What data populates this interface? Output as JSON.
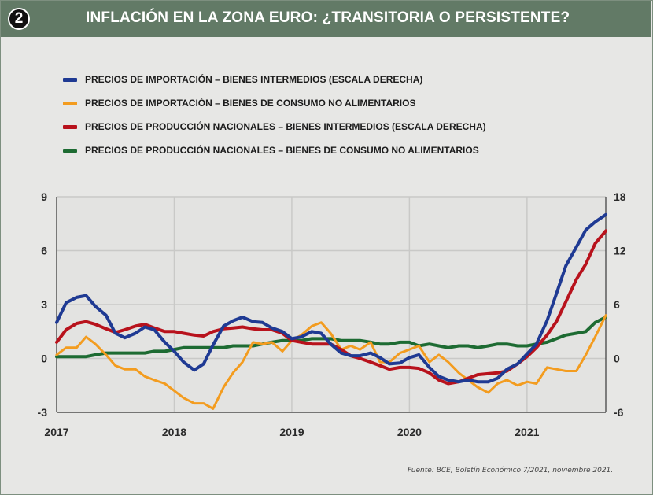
{
  "header": {
    "badge": "2",
    "title": "INFLACIÓN EN LA ZONA EURO: ¿TRANSITORIA O PERSISTENTE?"
  },
  "source": "Fuente: BCE, Boletín Económico 7/2021, noviembre 2021.",
  "chart_data": {
    "type": "line",
    "grid": true,
    "legend_position": "top-left",
    "x_ticks": [
      "2017",
      "2018",
      "2019",
      "2020",
      "2021"
    ],
    "x_range": [
      2017.0,
      2021.67
    ],
    "y_left": {
      "ticks": [
        "9",
        "6",
        "3",
        "0",
        "-3"
      ],
      "range": [
        -3,
        9
      ]
    },
    "y_right": {
      "ticks": [
        "18",
        "12",
        "6",
        "0",
        "-6"
      ],
      "range": [
        -6,
        18
      ]
    },
    "series": [
      {
        "name": "PRECIOS DE IMPORTACIÓN – BIENES INTERMEDIOS (ESCALA DERECHA)",
        "color": "#1f3a93",
        "axis": "right",
        "x": [
          2017.0,
          2017.08,
          2017.17,
          2017.25,
          2017.33,
          2017.42,
          2017.5,
          2017.58,
          2017.67,
          2017.75,
          2017.83,
          2017.92,
          2018.0,
          2018.08,
          2018.17,
          2018.25,
          2018.33,
          2018.42,
          2018.5,
          2018.58,
          2018.67,
          2018.75,
          2018.83,
          2018.92,
          2019.0,
          2019.08,
          2019.17,
          2019.25,
          2019.33,
          2019.42,
          2019.5,
          2019.58,
          2019.67,
          2019.75,
          2019.83,
          2019.92,
          2020.0,
          2020.08,
          2020.17,
          2020.25,
          2020.33,
          2020.42,
          2020.5,
          2020.58,
          2020.67,
          2020.75,
          2020.83,
          2020.92,
          2021.0,
          2021.08,
          2021.17,
          2021.25,
          2021.33,
          2021.42,
          2021.5,
          2021.58,
          2021.67
        ],
        "values": [
          4.0,
          6.2,
          6.8,
          7.0,
          5.8,
          4.8,
          2.8,
          2.3,
          2.8,
          3.5,
          3.2,
          1.8,
          0.8,
          -0.4,
          -1.3,
          -0.6,
          1.5,
          3.6,
          4.2,
          4.6,
          4.1,
          4.0,
          3.4,
          3.0,
          2.2,
          2.4,
          3.0,
          2.8,
          1.6,
          0.6,
          0.3,
          0.3,
          0.6,
          0.1,
          -0.6,
          -0.5,
          0.1,
          0.4,
          -1.0,
          -2.0,
          -2.4,
          -2.6,
          -2.4,
          -2.6,
          -2.6,
          -2.2,
          -1.2,
          -0.6,
          0.5,
          1.6,
          4.2,
          7.2,
          10.3,
          12.4,
          14.3,
          15.2,
          16.0
        ]
      },
      {
        "name": "PRECIOS DE IMPORTACIÓN – BIENES DE CONSUMO NO ALIMENTARIOS",
        "color": "#f39c1f",
        "axis": "left",
        "x": [
          2017.0,
          2017.08,
          2017.17,
          2017.25,
          2017.33,
          2017.42,
          2017.5,
          2017.58,
          2017.67,
          2017.75,
          2017.83,
          2017.92,
          2018.0,
          2018.08,
          2018.17,
          2018.25,
          2018.33,
          2018.42,
          2018.5,
          2018.58,
          2018.67,
          2018.75,
          2018.83,
          2018.92,
          2019.0,
          2019.08,
          2019.17,
          2019.25,
          2019.33,
          2019.42,
          2019.5,
          2019.58,
          2019.67,
          2019.75,
          2019.83,
          2019.92,
          2020.0,
          2020.08,
          2020.17,
          2020.25,
          2020.33,
          2020.42,
          2020.5,
          2020.58,
          2020.67,
          2020.75,
          2020.83,
          2020.92,
          2021.0,
          2021.08,
          2021.17,
          2021.25,
          2021.33,
          2021.42,
          2021.5,
          2021.58,
          2021.67
        ],
        "values": [
          0.2,
          0.6,
          0.6,
          1.2,
          0.8,
          0.2,
          -0.4,
          -0.6,
          -0.6,
          -1.0,
          -1.2,
          -1.4,
          -1.8,
          -2.2,
          -2.5,
          -2.5,
          -2.8,
          -1.6,
          -0.8,
          -0.2,
          0.9,
          0.8,
          0.9,
          0.4,
          1.0,
          1.3,
          1.8,
          2.0,
          1.4,
          0.5,
          0.7,
          0.5,
          0.9,
          -0.2,
          -0.2,
          0.3,
          0.5,
          0.7,
          -0.2,
          0.2,
          -0.2,
          -0.8,
          -1.2,
          -1.6,
          -1.9,
          -1.4,
          -1.2,
          -1.5,
          -1.3,
          -1.4,
          -0.5,
          -0.6,
          -0.7,
          -0.7,
          0.2,
          1.2,
          2.4
        ]
      },
      {
        "name": "PRECIOS DE PRODUCCIÓN NACIONALES – BIENES INTERMEDIOS (ESCALA DERECHA)",
        "color": "#b8121c",
        "axis": "right",
        "x": [
          2017.0,
          2017.08,
          2017.17,
          2017.25,
          2017.33,
          2017.42,
          2017.5,
          2017.58,
          2017.67,
          2017.75,
          2017.83,
          2017.92,
          2018.0,
          2018.08,
          2018.17,
          2018.25,
          2018.33,
          2018.42,
          2018.5,
          2018.58,
          2018.67,
          2018.75,
          2018.83,
          2018.92,
          2019.0,
          2019.08,
          2019.17,
          2019.25,
          2019.33,
          2019.42,
          2019.5,
          2019.58,
          2019.67,
          2019.75,
          2019.83,
          2019.92,
          2020.0,
          2020.08,
          2020.17,
          2020.25,
          2020.33,
          2020.42,
          2020.5,
          2020.58,
          2020.67,
          2020.75,
          2020.83,
          2020.92,
          2021.0,
          2021.08,
          2021.17,
          2021.25,
          2021.33,
          2021.42,
          2021.5,
          2021.58,
          2021.67
        ],
        "values": [
          1.8,
          3.2,
          3.9,
          4.1,
          3.8,
          3.3,
          2.9,
          3.2,
          3.6,
          3.8,
          3.4,
          3.0,
          3.0,
          2.8,
          2.6,
          2.5,
          3.0,
          3.3,
          3.4,
          3.5,
          3.3,
          3.2,
          3.2,
          2.8,
          2.0,
          1.8,
          1.6,
          1.6,
          1.6,
          1.0,
          0.3,
          0.0,
          -0.4,
          -0.8,
          -1.2,
          -1.0,
          -1.0,
          -1.1,
          -1.6,
          -2.4,
          -2.8,
          -2.6,
          -2.2,
          -1.8,
          -1.7,
          -1.6,
          -1.4,
          -0.6,
          0.2,
          1.2,
          2.6,
          4.1,
          6.3,
          8.8,
          10.5,
          12.8,
          14.2
        ]
      },
      {
        "name": "PRECIOS DE PRODUCCIÓN NACIONALES – BIENES DE CONSUMO NO ALIMENTARIOS",
        "color": "#1d6b32",
        "axis": "left",
        "x": [
          2017.0,
          2017.08,
          2017.17,
          2017.25,
          2017.33,
          2017.42,
          2017.5,
          2017.58,
          2017.67,
          2017.75,
          2017.83,
          2017.92,
          2018.0,
          2018.08,
          2018.17,
          2018.25,
          2018.33,
          2018.42,
          2018.5,
          2018.58,
          2018.67,
          2018.75,
          2018.83,
          2018.92,
          2019.0,
          2019.08,
          2019.17,
          2019.25,
          2019.33,
          2019.42,
          2019.5,
          2019.58,
          2019.67,
          2019.75,
          2019.83,
          2019.92,
          2020.0,
          2020.08,
          2020.17,
          2020.25,
          2020.33,
          2020.42,
          2020.5,
          2020.58,
          2020.67,
          2020.75,
          2020.83,
          2020.92,
          2021.0,
          2021.08,
          2021.17,
          2021.25,
          2021.33,
          2021.42,
          2021.5,
          2021.58,
          2021.67
        ],
        "values": [
          0.1,
          0.1,
          0.1,
          0.1,
          0.2,
          0.3,
          0.3,
          0.3,
          0.3,
          0.3,
          0.4,
          0.4,
          0.5,
          0.6,
          0.6,
          0.6,
          0.6,
          0.6,
          0.7,
          0.7,
          0.7,
          0.8,
          0.9,
          1.0,
          1.0,
          1.0,
          1.1,
          1.1,
          1.1,
          1.0,
          1.0,
          1.0,
          0.9,
          0.8,
          0.8,
          0.9,
          0.9,
          0.7,
          0.8,
          0.7,
          0.6,
          0.7,
          0.7,
          0.6,
          0.7,
          0.8,
          0.8,
          0.7,
          0.7,
          0.8,
          0.9,
          1.1,
          1.3,
          1.4,
          1.5,
          2.0,
          2.3
        ]
      }
    ]
  }
}
